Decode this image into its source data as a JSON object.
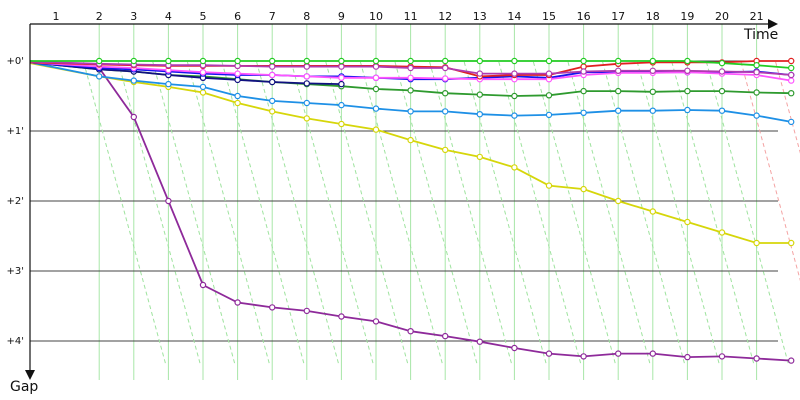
{
  "chart_data": {
    "type": "line",
    "xlabel": "Time",
    "ylabel": "Gap",
    "x_tick_labels": [
      "1",
      "2",
      "3",
      "4",
      "5",
      "6",
      "7",
      "8",
      "9",
      "10",
      "11",
      "12",
      "13",
      "14",
      "15",
      "16",
      "17",
      "18",
      "19",
      "20",
      "21"
    ],
    "y_tick_labels": [
      "+0'",
      "+1'",
      "+2'",
      "+3'",
      "+4'"
    ],
    "ylim": [
      0,
      4.6
    ],
    "xlim": [
      0,
      22.3
    ],
    "grid": true,
    "gridlines_x_color": "#a8e6a8",
    "gridlines_y_color": "#444444",
    "series": [
      {
        "color": "#8e2a9a",
        "x": [
          0,
          2,
          3,
          4,
          5,
          6,
          7,
          8,
          9,
          10,
          11,
          12,
          13,
          14,
          15,
          16,
          17,
          18,
          19,
          20,
          21,
          22
        ],
        "y": [
          0,
          0.1,
          0.8,
          2.0,
          3.2,
          3.45,
          3.52,
          3.57,
          3.65,
          3.72,
          3.86,
          3.93,
          4.01,
          4.1,
          4.18,
          4.22,
          4.18,
          4.18,
          4.23,
          4.22,
          4.25,
          4.28
        ]
      },
      {
        "color": "#d6d60a",
        "x": [
          0,
          2,
          3,
          4,
          5,
          6,
          7,
          8,
          9,
          10,
          11,
          12,
          13,
          14,
          15,
          16,
          17,
          18,
          19,
          20,
          21,
          22
        ],
        "y": [
          0.03,
          0.22,
          0.3,
          0.37,
          0.45,
          0.6,
          0.72,
          0.82,
          0.9,
          0.98,
          1.13,
          1.27,
          1.37,
          1.52,
          1.78,
          1.83,
          2.0,
          2.15,
          2.3,
          2.45,
          2.6,
          2.6
        ]
      },
      {
        "color": "#1e90e6",
        "x": [
          0,
          2,
          3,
          4,
          5,
          6,
          7,
          8,
          9,
          10,
          11,
          12,
          13,
          14,
          15,
          16,
          17,
          18,
          19,
          20,
          21,
          22
        ],
        "y": [
          0.02,
          0.22,
          0.28,
          0.33,
          0.37,
          0.5,
          0.57,
          0.6,
          0.63,
          0.68,
          0.72,
          0.72,
          0.76,
          0.78,
          0.77,
          0.74,
          0.71,
          0.71,
          0.7,
          0.71,
          0.78,
          0.87
        ]
      },
      {
        "color": "#2e9a2e",
        "x": [
          0,
          2,
          3,
          4,
          5,
          6,
          7,
          8,
          9,
          10,
          11,
          12,
          13,
          14,
          15,
          16,
          17,
          18,
          19,
          20,
          21,
          22
        ],
        "y": [
          0.02,
          0.12,
          0.15,
          0.2,
          0.22,
          0.26,
          0.3,
          0.33,
          0.36,
          0.4,
          0.42,
          0.46,
          0.48,
          0.5,
          0.49,
          0.43,
          0.43,
          0.44,
          0.43,
          0.43,
          0.45,
          0.46
        ]
      },
      {
        "color": "#101080",
        "x": [
          0,
          2,
          3,
          4,
          5,
          6,
          7,
          8,
          9
        ],
        "y": [
          0.02,
          0.12,
          0.15,
          0.2,
          0.24,
          0.27,
          0.3,
          0.32,
          0.33
        ]
      },
      {
        "color": "#1515ee",
        "x": [
          0,
          2,
          3,
          4,
          5,
          6,
          7,
          8,
          9,
          10,
          11,
          12,
          13,
          14,
          15,
          16,
          17,
          18,
          19,
          20,
          21,
          22
        ],
        "y": [
          0.02,
          0.1,
          0.12,
          0.15,
          0.18,
          0.2,
          0.2,
          0.22,
          0.22,
          0.24,
          0.26,
          0.26,
          0.24,
          0.22,
          0.24,
          0.16,
          0.16,
          0.16,
          0.16,
          0.16,
          0.15,
          0.2
        ]
      },
      {
        "color": "#ff55ff",
        "x": [
          0,
          2,
          3,
          4,
          5,
          6,
          7,
          8,
          9,
          10,
          11,
          12,
          13,
          14,
          15,
          16,
          17,
          18,
          19,
          20,
          21,
          22
        ],
        "y": [
          0.02,
          0.08,
          0.1,
          0.13,
          0.16,
          0.18,
          0.2,
          0.22,
          0.24,
          0.24,
          0.24,
          0.25,
          0.26,
          0.26,
          0.26,
          0.2,
          0.17,
          0.17,
          0.16,
          0.18,
          0.2,
          0.28
        ]
      },
      {
        "color": "#e02020",
        "x": [
          0,
          2,
          3,
          4,
          5,
          6,
          7,
          8,
          9,
          10,
          11,
          12,
          13,
          14,
          15,
          16,
          17,
          18,
          19,
          20,
          21,
          22
        ],
        "y": [
          0.02,
          0.05,
          0.06,
          0.07,
          0.07,
          0.07,
          0.07,
          0.07,
          0.07,
          0.07,
          0.08,
          0.09,
          0.22,
          0.2,
          0.2,
          0.08,
          0.04,
          0.02,
          0.02,
          0.02,
          0.0,
          0.0
        ]
      },
      {
        "color": "#b03ab0",
        "x": [
          0,
          2,
          3,
          4,
          5,
          6,
          7,
          8,
          9,
          10,
          11,
          12,
          13,
          14,
          15,
          16,
          17,
          18,
          19,
          20,
          21,
          22
        ],
        "y": [
          0.01,
          0.04,
          0.05,
          0.06,
          0.06,
          0.07,
          0.08,
          0.08,
          0.08,
          0.08,
          0.1,
          0.1,
          0.18,
          0.18,
          0.18,
          0.15,
          0.14,
          0.14,
          0.14,
          0.15,
          0.16,
          0.2
        ]
      },
      {
        "color": "#22cc22",
        "x": [
          0,
          2,
          3,
          4,
          5,
          6,
          7,
          8,
          9,
          10,
          11,
          12,
          13,
          14,
          15,
          16,
          17,
          18,
          19,
          20,
          21,
          22
        ],
        "y": [
          0.0,
          0.0,
          0.0,
          0.0,
          0.0,
          0.0,
          0.0,
          0.0,
          0.0,
          0.0,
          0.0,
          0.0,
          0.0,
          0.0,
          0.0,
          0.0,
          0.0,
          0.0,
          0.0,
          0.03,
          0.06,
          0.1
        ]
      }
    ]
  }
}
